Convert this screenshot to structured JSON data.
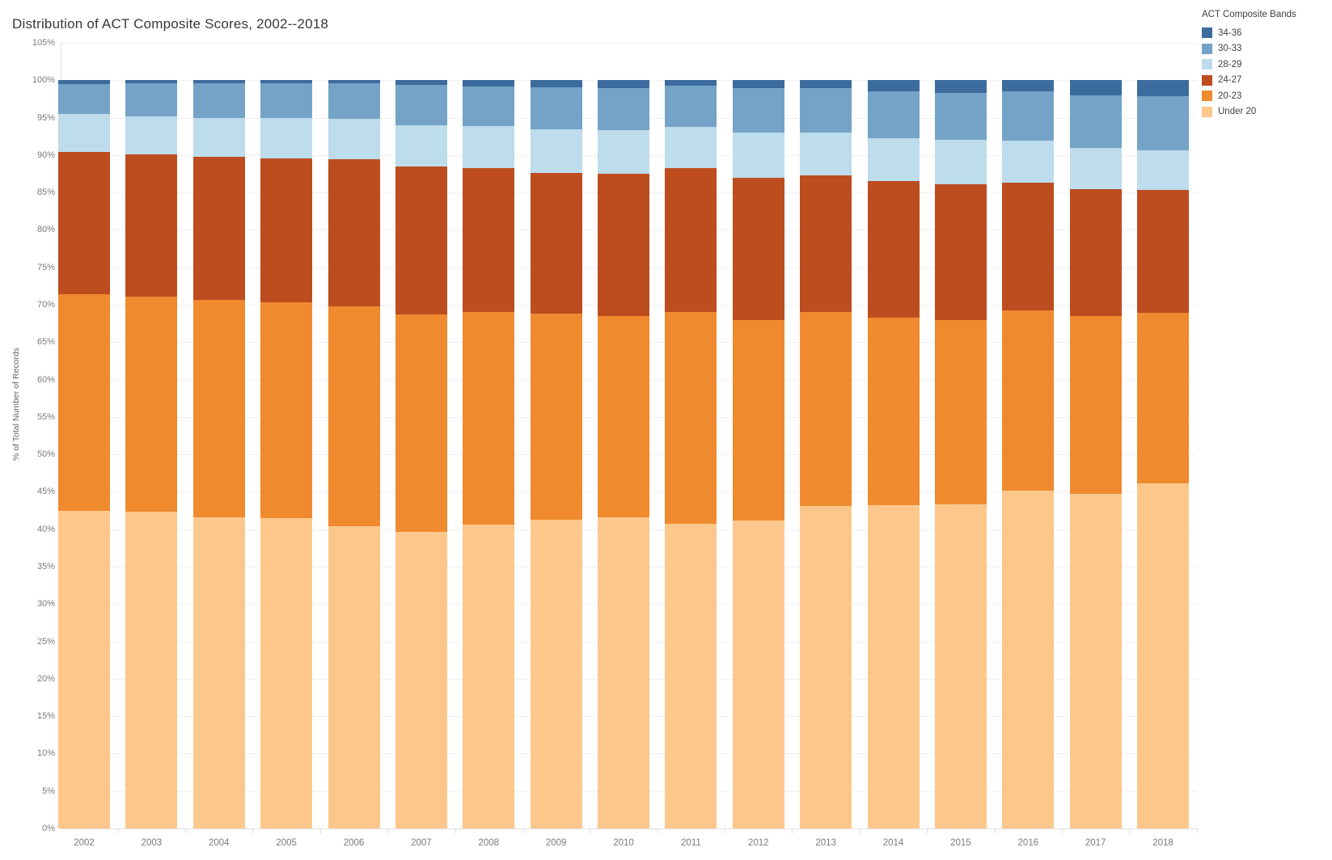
{
  "title": "Distribution of ACT Composite Scores, 2002--2018",
  "y_axis": {
    "title": "% of Total Number of Records",
    "ticks": [
      "0%",
      "5%",
      "10%",
      "15%",
      "20%",
      "25%",
      "30%",
      "35%",
      "40%",
      "45%",
      "50%",
      "55%",
      "60%",
      "65%",
      "70%",
      "75%",
      "80%",
      "85%",
      "90%",
      "95%",
      "100%",
      "105%"
    ]
  },
  "x_axis": {
    "labels": [
      "2002",
      "2003",
      "2004",
      "2005",
      "2006",
      "2007",
      "2008",
      "2009",
      "2010",
      "2011",
      "2012",
      "2013",
      "2014",
      "2015",
      "2016",
      "2017",
      "2018"
    ]
  },
  "legend": {
    "title": "ACT Composite Bands",
    "items": [
      {
        "label": "34-36",
        "color": "#3b6c9d"
      },
      {
        "label": "30-33",
        "color": "#74a3c7"
      },
      {
        "label": "28-29",
        "color": "#bddcec"
      },
      {
        "label": "24-27",
        "color": "#bd4c1f"
      },
      {
        "label": "20-23",
        "color": "#ef8a2f"
      },
      {
        "label": "Under 20",
        "color": "#fdc78c"
      }
    ]
  },
  "chart_data": {
    "type": "bar",
    "stacked": true,
    "title": "Distribution of ACT Composite Scores, 2002--2018",
    "xlabel": "",
    "ylabel": "% of Total Number of Records",
    "ylim": [
      0,
      105
    ],
    "ytick_step": 5,
    "grid": true,
    "legend_position": "top-right",
    "units": "percent of total number of records",
    "categories": [
      "2002",
      "2003",
      "2004",
      "2005",
      "2006",
      "2007",
      "2008",
      "2009",
      "2010",
      "2011",
      "2012",
      "2013",
      "2014",
      "2015",
      "2016",
      "2017",
      "2018"
    ],
    "series": [
      {
        "name": "Under 20",
        "color": "#fdc78c",
        "values": [
          42.5,
          42.3,
          41.6,
          41.5,
          40.4,
          39.6,
          40.6,
          41.3,
          41.6,
          40.7,
          41.2,
          43.1,
          43.2,
          43.3,
          45.2,
          44.7,
          46.1
        ]
      },
      {
        "name": "20-23",
        "color": "#ef8a2f",
        "values": [
          28.9,
          28.8,
          29.0,
          28.8,
          29.4,
          29.1,
          28.4,
          27.5,
          26.9,
          28.3,
          26.7,
          25.9,
          25.1,
          24.7,
          24.0,
          23.8,
          22.8
        ]
      },
      {
        "name": "24-27",
        "color": "#bd4c1f",
        "values": [
          19.0,
          19.0,
          19.2,
          19.3,
          19.6,
          19.8,
          19.3,
          18.8,
          19.0,
          19.3,
          19.1,
          18.3,
          18.2,
          18.1,
          17.1,
          16.9,
          16.4
        ]
      },
      {
        "name": "28-29",
        "color": "#bddcec",
        "values": [
          5.1,
          5.1,
          5.2,
          5.4,
          5.4,
          5.5,
          5.6,
          5.8,
          5.8,
          5.5,
          6.0,
          5.7,
          5.8,
          5.9,
          5.6,
          5.6,
          5.3
        ]
      },
      {
        "name": "30-33",
        "color": "#74a3c7",
        "values": [
          4.0,
          4.4,
          4.6,
          4.6,
          4.8,
          5.4,
          5.3,
          5.7,
          5.7,
          5.5,
          5.9,
          6.0,
          6.2,
          6.3,
          6.6,
          7.0,
          7.3
        ]
      },
      {
        "name": "34-36",
        "color": "#3b6c9d",
        "values": [
          0.5,
          0.4,
          0.4,
          0.4,
          0.4,
          0.6,
          0.8,
          0.9,
          1.0,
          0.7,
          1.1,
          1.0,
          1.5,
          1.7,
          1.5,
          2.0,
          2.1
        ]
      }
    ],
    "cumulative_tops_note": "each column sums to 100%"
  }
}
